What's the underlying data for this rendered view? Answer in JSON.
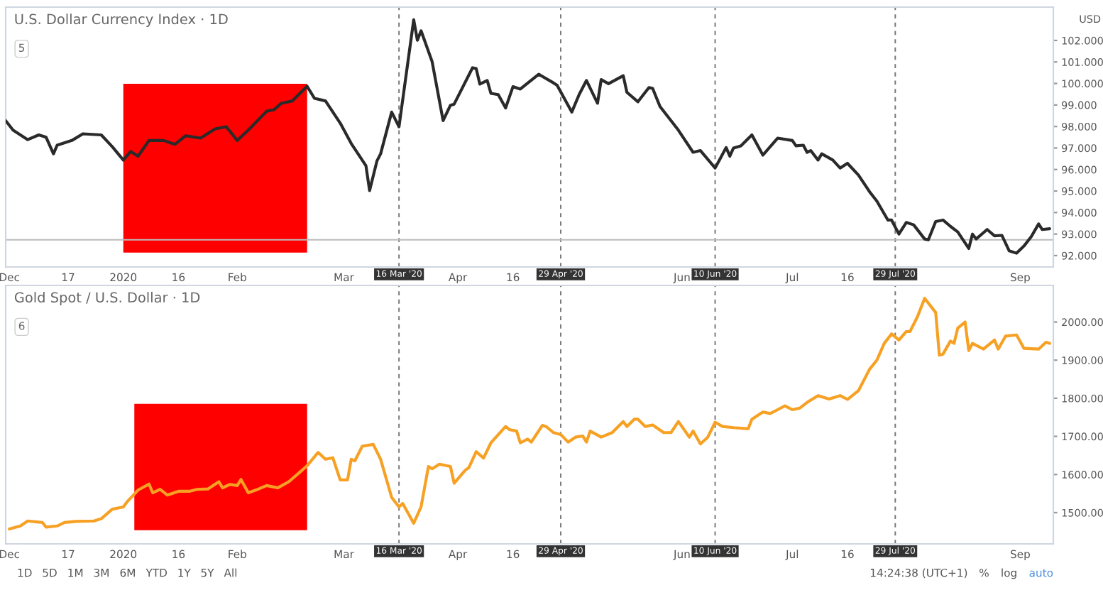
{
  "chart_data": [
    {
      "type": "line",
      "title": "U.S. Dollar Currency Index · 1D",
      "ylabel": "USD",
      "series": [
        {
          "color": "#2a2a2a",
          "x": [
            "2019-11-30",
            "2019-12-02",
            "2019-12-06",
            "2019-12-09",
            "2019-12-11",
            "2019-12-13",
            "2019-12-14",
            "2019-12-18",
            "2019-12-21",
            "2019-12-26",
            "2019-12-29",
            "2020-01-01",
            "2020-01-03",
            "2020-01-05",
            "2020-01-08",
            "2020-01-12",
            "2020-01-15",
            "2020-01-18",
            "2020-01-22",
            "2020-01-26",
            "2020-01-29",
            "2020-02-01",
            "2020-02-04",
            "2020-02-09",
            "2020-02-11",
            "2020-02-13",
            "2020-02-16",
            "2020-02-20",
            "2020-02-22",
            "2020-02-25",
            "2020-02-29",
            "2020-03-03",
            "2020-03-07",
            "2020-03-08",
            "2020-03-10",
            "2020-03-11",
            "2020-03-14",
            "2020-03-16",
            "2020-03-20",
            "2020-03-21",
            "2020-03-22",
            "2020-03-25",
            "2020-03-28",
            "2020-03-30",
            "2020-03-31",
            "2020-04-05",
            "2020-04-06",
            "2020-04-07",
            "2020-04-09",
            "2020-04-10",
            "2020-04-12",
            "2020-04-14",
            "2020-04-16",
            "2020-04-18",
            "2020-04-23",
            "2020-04-27",
            "2020-04-28",
            "2020-05-02",
            "2020-05-04",
            "2020-05-06",
            "2020-05-09",
            "2020-05-10",
            "2020-05-12",
            "2020-05-16",
            "2020-05-17",
            "2020-05-20",
            "2020-05-23",
            "2020-05-24",
            "2020-05-26",
            "2020-05-31",
            "2020-06-04",
            "2020-06-06",
            "2020-06-10",
            "2020-06-13",
            "2020-06-14",
            "2020-06-15",
            "2020-06-17",
            "2020-06-20",
            "2020-06-23",
            "2020-06-27",
            "2020-07-01",
            "2020-07-02",
            "2020-07-04",
            "2020-07-05",
            "2020-07-06",
            "2020-07-08",
            "2020-07-09",
            "2020-07-12",
            "2020-07-14",
            "2020-07-16",
            "2020-07-19",
            "2020-07-22",
            "2020-07-24",
            "2020-07-27",
            "2020-07-28",
            "2020-07-30",
            "2020-08-01",
            "2020-08-03",
            "2020-08-06",
            "2020-08-07",
            "2020-08-09",
            "2020-08-11",
            "2020-08-13",
            "2020-08-15",
            "2020-08-18",
            "2020-08-19",
            "2020-08-20",
            "2020-08-23",
            "2020-08-25",
            "2020-08-27",
            "2020-08-29",
            "2020-08-31",
            "2020-09-02",
            "2020-09-04",
            "2020-09-06",
            "2020-09-07",
            "2020-09-09"
          ],
          "values": [
            98.27,
            97.83,
            97.39,
            97.61,
            97.5,
            96.73,
            97.13,
            97.35,
            97.66,
            97.61,
            97.06,
            96.44,
            96.84,
            96.62,
            97.35,
            97.35,
            97.17,
            97.57,
            97.46,
            97.89,
            97.99,
            97.35,
            97.83,
            98.71,
            98.78,
            99.08,
            99.19,
            99.87,
            99.31,
            99.19,
            98.16,
            97.21,
            96.18,
            95.02,
            96.4,
            96.73,
            98.67,
            97.99,
            102.96,
            102.01,
            102.45,
            101.02,
            98.27,
            98.99,
            99.04,
            100.73,
            100.69,
            99.97,
            100.14,
            99.54,
            99.48,
            98.86,
            99.85,
            99.74,
            100.43,
            100.03,
            99.92,
            98.67,
            99.48,
            100.14,
            99.08,
            100.18,
            99.99,
            100.36,
            99.59,
            99.15,
            99.81,
            99.77,
            98.93,
            97.83,
            96.8,
            96.88,
            96.07,
            97.02,
            96.62,
            97.0,
            97.1,
            97.61,
            96.67,
            97.46,
            97.35,
            97.1,
            97.13,
            96.8,
            96.88,
            96.44,
            96.73,
            96.44,
            96.07,
            96.29,
            95.74,
            94.97,
            94.53,
            93.65,
            93.65,
            93.0,
            93.54,
            93.43,
            92.77,
            92.73,
            93.58,
            93.65,
            93.36,
            93.1,
            92.33,
            93.0,
            92.77,
            93.21,
            92.92,
            92.94,
            92.22,
            92.11,
            92.44,
            92.88,
            93.47,
            93.21,
            93.25
          ]
        }
      ],
      "xlim": [
        "2019-11-30",
        "2020-09-10"
      ],
      "xticks": [
        {
          "value": "2019-12-01",
          "label": "Dec"
        },
        {
          "value": "2019-12-17",
          "label": "17"
        },
        {
          "value": "2020-01-01",
          "label": "2020"
        },
        {
          "value": "2020-01-16",
          "label": "16"
        },
        {
          "value": "2020-02-01",
          "label": "Feb"
        },
        {
          "value": "2020-03-01",
          "label": "Mar"
        },
        {
          "value": "2020-04-01",
          "label": "Apr"
        },
        {
          "value": "2020-04-16",
          "label": "16"
        },
        {
          "value": "2020-06-01",
          "label": "Jun"
        },
        {
          "value": "2020-07-01",
          "label": "Jul"
        },
        {
          "value": "2020-07-16",
          "label": "16"
        },
        {
          "value": "2020-09-01",
          "label": "Sep"
        }
      ],
      "ylim": [
        91.47,
        103.55
      ],
      "yticks": [
        {
          "value": 92,
          "label": "92.000"
        },
        {
          "value": 93,
          "label": "93.000"
        },
        {
          "value": 94,
          "label": "94.000"
        },
        {
          "value": 95,
          "label": "95.000"
        },
        {
          "value": 96,
          "label": "96.000"
        },
        {
          "value": 97,
          "label": "97.000"
        },
        {
          "value": 98,
          "label": "98.000"
        },
        {
          "value": 99,
          "label": "99.000"
        },
        {
          "value": 100,
          "label": "100.000"
        },
        {
          "value": 101,
          "label": "101.000"
        },
        {
          "value": 102,
          "label": "102.000"
        }
      ],
      "ref_lines": [
        {
          "axis": "x",
          "value": "2020-03-16",
          "label": "16 Mar '20",
          "color": "#777777",
          "line_style": "dashed"
        },
        {
          "axis": "x",
          "value": "2020-04-29",
          "label": "29 Apr '20",
          "color": "#777777",
          "line_style": "dashed"
        },
        {
          "axis": "x",
          "value": "2020-06-10",
          "label": "10 Jun '20",
          "color": "#777777",
          "line_style": "dashed"
        },
        {
          "axis": "x",
          "value": "2020-07-29",
          "label": "29 Jul '20",
          "color": "#777777",
          "line_style": "dashed"
        },
        {
          "axis": "y",
          "value": 92.73,
          "color": "#bbbbbb",
          "line_style": "solid"
        }
      ],
      "bands": [
        {
          "axis": "x",
          "from": "2020-01-01",
          "to": "2020-02-20",
          "color": "#ff0000"
        }
      ],
      "annotations": [
        "5"
      ]
    },
    {
      "type": "line",
      "title": "Gold Spot / U.S. Dollar · 1D",
      "series": [
        {
          "color": "#f7a124",
          "x": [
            "2019-12-01",
            "2019-12-04",
            "2019-12-06",
            "2019-12-10",
            "2019-12-11",
            "2019-12-14",
            "2019-12-16",
            "2019-12-19",
            "2019-12-24",
            "2019-12-26",
            "2019-12-29",
            "2020-01-01",
            "2020-01-02",
            "2020-01-05",
            "2020-01-08",
            "2020-01-09",
            "2020-01-11",
            "2020-01-13",
            "2020-01-16",
            "2020-01-19",
            "2020-01-21",
            "2020-01-24",
            "2020-01-27",
            "2020-01-28",
            "2020-01-30",
            "2020-02-01",
            "2020-02-02",
            "2020-02-04",
            "2020-02-06",
            "2020-02-09",
            "2020-02-12",
            "2020-02-15",
            "2020-02-18",
            "2020-02-20",
            "2020-02-23",
            "2020-02-25",
            "2020-02-27",
            "2020-02-29",
            "2020-03-02",
            "2020-03-03",
            "2020-03-04",
            "2020-03-06",
            "2020-03-09",
            "2020-03-11",
            "2020-03-14",
            "2020-03-16",
            "2020-03-17",
            "2020-03-20",
            "2020-03-22",
            "2020-03-24",
            "2020-03-25",
            "2020-03-27",
            "2020-03-30",
            "2020-03-31",
            "2020-04-03",
            "2020-04-04",
            "2020-04-06",
            "2020-04-08",
            "2020-04-10",
            "2020-04-14",
            "2020-04-15",
            "2020-04-17",
            "2020-04-18",
            "2020-04-20",
            "2020-04-21",
            "2020-04-24",
            "2020-04-25",
            "2020-04-27",
            "2020-04-29",
            "2020-05-01",
            "2020-05-03",
            "2020-05-05",
            "2020-05-06",
            "2020-05-07",
            "2020-05-10",
            "2020-05-13",
            "2020-05-16",
            "2020-05-17",
            "2020-05-19",
            "2020-05-20",
            "2020-05-22",
            "2020-05-24",
            "2020-05-27",
            "2020-05-29",
            "2020-05-31",
            "2020-06-03",
            "2020-06-04",
            "2020-06-06",
            "2020-06-08",
            "2020-06-10",
            "2020-06-12",
            "2020-06-15",
            "2020-06-19",
            "2020-06-20",
            "2020-06-23",
            "2020-06-25",
            "2020-06-27",
            "2020-06-29",
            "2020-07-01",
            "2020-07-03",
            "2020-07-05",
            "2020-07-08",
            "2020-07-11",
            "2020-07-14",
            "2020-07-16",
            "2020-07-19",
            "2020-07-22",
            "2020-07-24",
            "2020-07-26",
            "2020-07-28",
            "2020-07-30",
            "2020-08-01",
            "2020-08-02",
            "2020-08-04",
            "2020-08-06",
            "2020-08-09",
            "2020-08-10",
            "2020-08-11",
            "2020-08-13",
            "2020-08-14",
            "2020-08-15",
            "2020-08-17",
            "2020-08-18",
            "2020-08-19",
            "2020-08-22",
            "2020-08-25",
            "2020-08-26",
            "2020-08-28",
            "2020-08-31",
            "2020-09-02",
            "2020-09-06",
            "2020-09-08",
            "2020-09-09"
          ],
          "values": [
            1457,
            1465,
            1478,
            1474,
            1462,
            1465,
            1474,
            1477,
            1478,
            1484,
            1509,
            1515,
            1528,
            1559,
            1575,
            1552,
            1561,
            1546,
            1556,
            1556,
            1561,
            1562,
            1581,
            1565,
            1574,
            1571,
            1587,
            1552,
            1559,
            1571,
            1565,
            1581,
            1606,
            1623,
            1658,
            1640,
            1644,
            1586,
            1586,
            1640,
            1636,
            1674,
            1679,
            1640,
            1540,
            1515,
            1524,
            1472,
            1515,
            1621,
            1615,
            1627,
            1621,
            1577,
            1611,
            1618,
            1660,
            1643,
            1683,
            1726,
            1718,
            1714,
            1683,
            1693,
            1685,
            1729,
            1726,
            1710,
            1705,
            1685,
            1698,
            1701,
            1685,
            1714,
            1698,
            1710,
            1739,
            1726,
            1745,
            1745,
            1726,
            1730,
            1710,
            1710,
            1739,
            1698,
            1714,
            1680,
            1698,
            1737,
            1726,
            1723,
            1720,
            1745,
            1764,
            1760,
            1770,
            1780,
            1770,
            1774,
            1789,
            1807,
            1798,
            1807,
            1797,
            1820,
            1876,
            1900,
            1944,
            1969,
            1953,
            1975,
            1975,
            2013,
            2062,
            2025,
            1913,
            1916,
            1950,
            1944,
            1984,
            2000,
            1925,
            1944,
            1929,
            1953,
            1929,
            1963,
            1966,
            1931,
            1929,
            1947,
            1944
          ]
        }
      ],
      "xlim": [
        "2019-11-30",
        "2020-09-10"
      ],
      "xticks": [
        {
          "value": "2019-12-01",
          "label": "Dec"
        },
        {
          "value": "2019-12-17",
          "label": "17"
        },
        {
          "value": "2020-01-01",
          "label": "2020"
        },
        {
          "value": "2020-01-16",
          "label": "16"
        },
        {
          "value": "2020-02-01",
          "label": "Feb"
        },
        {
          "value": "2020-03-01",
          "label": "Mar"
        },
        {
          "value": "2020-04-01",
          "label": "Apr"
        },
        {
          "value": "2020-04-16",
          "label": "16"
        },
        {
          "value": "2020-06-01",
          "label": "Jun"
        },
        {
          "value": "2020-07-01",
          "label": "Jul"
        },
        {
          "value": "2020-07-16",
          "label": "16"
        },
        {
          "value": "2020-09-01",
          "label": "Sep"
        }
      ],
      "ylim": [
        1418,
        2096
      ],
      "yticks": [
        {
          "value": 1500,
          "label": "1500.00"
        },
        {
          "value": 1600,
          "label": "1600.00"
        },
        {
          "value": 1700,
          "label": "1700.00"
        },
        {
          "value": 1800,
          "label": "1800.00"
        },
        {
          "value": 1900,
          "label": "1900.00"
        },
        {
          "value": 2000,
          "label": "2000.00"
        }
      ],
      "ref_lines": [
        {
          "axis": "x",
          "value": "2020-03-16",
          "label": "16 Mar '20",
          "color": "#777777",
          "line_style": "dashed"
        },
        {
          "axis": "x",
          "value": "2020-04-29",
          "label": "29 Apr '20",
          "color": "#777777",
          "line_style": "dashed"
        },
        {
          "axis": "x",
          "value": "2020-06-10",
          "label": "10 Jun '20",
          "color": "#777777",
          "line_style": "dashed"
        },
        {
          "axis": "x",
          "value": "2020-07-29",
          "label": "29 Jul '20",
          "color": "#777777",
          "line_style": "dashed"
        }
      ],
      "bands": [
        {
          "axis": "x",
          "from": "2020-01-04",
          "to": "2020-02-20",
          "color": "#ff0000"
        }
      ],
      "annotations": [
        "6",
        "1D",
        "5D",
        "1M",
        "3M",
        "6M",
        "YTD",
        "1Y",
        "5Y",
        "All",
        "14:24:38 (UTC+1)",
        "%",
        "log",
        "auto"
      ]
    }
  ]
}
